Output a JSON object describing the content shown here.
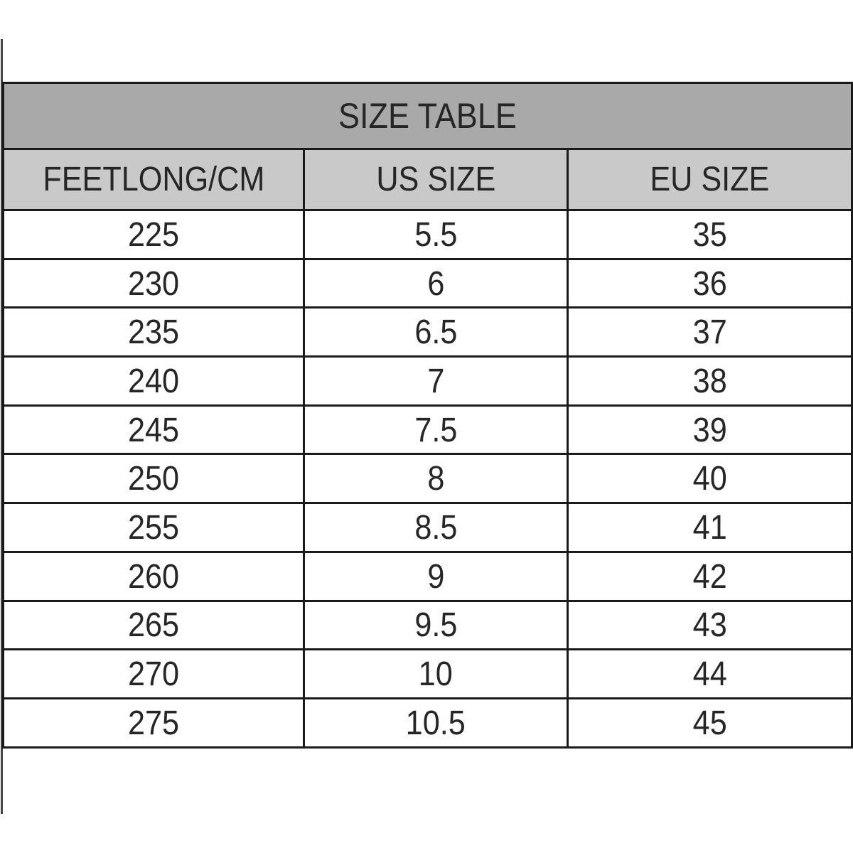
{
  "table": {
    "title": "SIZE TABLE",
    "headers": [
      "FEETLONG/CM",
      "US SIZE",
      "EU SIZE"
    ],
    "rows": [
      [
        "225",
        "5.5",
        "35"
      ],
      [
        "230",
        "6",
        "36"
      ],
      [
        "235",
        "6.5",
        "37"
      ],
      [
        "240",
        "7",
        "38"
      ],
      [
        "245",
        "7.5",
        "39"
      ],
      [
        "250",
        "8",
        "40"
      ],
      [
        "255",
        "8.5",
        "41"
      ],
      [
        "260",
        "9",
        "42"
      ],
      [
        "265",
        "9.5",
        "43"
      ],
      [
        "270",
        "10",
        "44"
      ],
      [
        "275",
        "10.5",
        "45"
      ]
    ]
  }
}
